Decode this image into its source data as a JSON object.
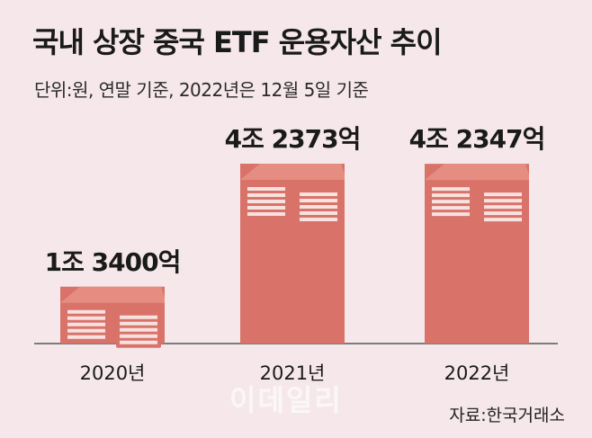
{
  "header": {
    "title": "국내 상장 중국 ETF 운용자산 추이",
    "subtitle": "단위:원, 연말 기준, 2022년은 12월 5일 기준"
  },
  "footer": {
    "source": "자료:한국거래소",
    "watermark": "이데일리"
  },
  "colors": {
    "bar": "#d9736a",
    "bar_top": "#e68d82",
    "stripe": "#f7e2df",
    "background": "#f6e8ea"
  },
  "chart_data": {
    "type": "bar",
    "categories": [
      "2020년",
      "2021년",
      "2022년"
    ],
    "values": [
      13400,
      42373,
      42347
    ],
    "value_labels": [
      "1조 3400억",
      "4조 2373억",
      "4조 2347억"
    ],
    "ylabel": "",
    "ylim": [
      0,
      50000
    ]
  }
}
